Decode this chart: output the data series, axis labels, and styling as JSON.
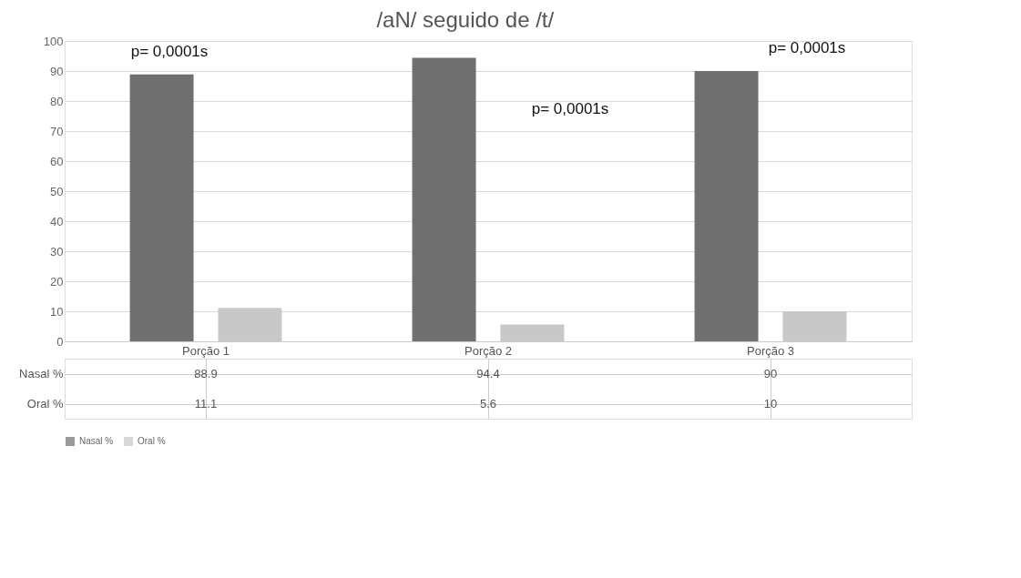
{
  "chart_data": {
    "type": "bar",
    "title": "/aN/ seguido de   /t/",
    "categories": [
      "Porção 1",
      "Porção 2",
      "Porção 3"
    ],
    "series": [
      {
        "name": "Nasal %",
        "color": "#707070",
        "values": [
          88.9,
          94.4,
          90
        ]
      },
      {
        "name": "Oral %",
        "color": "#c8c8c8",
        "values": [
          11.1,
          5.6,
          10
        ]
      }
    ],
    "ylim": [
      0,
      100
    ],
    "yticks": [
      0,
      10,
      20,
      30,
      40,
      50,
      60,
      70,
      80,
      90,
      100
    ],
    "grid": "y",
    "legend": "bottom",
    "data_labels": true,
    "annotations": [
      "p= 0,0001s",
      "p= 0,0001s",
      "p= 0,0001s"
    ]
  }
}
